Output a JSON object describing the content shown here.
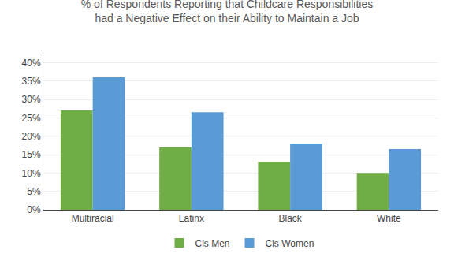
{
  "chart_data": {
    "type": "bar",
    "title": "% of Respondents Reporting that Childcare Responsibilities\nhad a Negative Effect on their Ability to Maintain a Job",
    "categories": [
      "Multiracial",
      "Latinx",
      "Black",
      "White"
    ],
    "series": [
      {
        "name": "Cis Men",
        "color": "#70AD47",
        "values": [
          0.27,
          0.17,
          0.13,
          0.1
        ]
      },
      {
        "name": "Cis Women",
        "color": "#5B9BD5",
        "values": [
          0.36,
          0.265,
          0.18,
          0.165
        ]
      }
    ],
    "ylim": [
      0,
      0.42
    ],
    "yticks": [
      {
        "value": 0,
        "label": "0%"
      },
      {
        "value": 0.05,
        "label": "5%"
      },
      {
        "value": 0.1,
        "label": "10%"
      },
      {
        "value": 0.15,
        "label": "15%"
      },
      {
        "value": 0.2,
        "label": "20%"
      },
      {
        "value": 0.25,
        "label": "25%"
      },
      {
        "value": 0.3,
        "label": "30%"
      },
      {
        "value": 0.35,
        "label": "35%"
      },
      {
        "value": 0.4,
        "label": "40%"
      }
    ],
    "grid": true,
    "legend": "bottom"
  }
}
